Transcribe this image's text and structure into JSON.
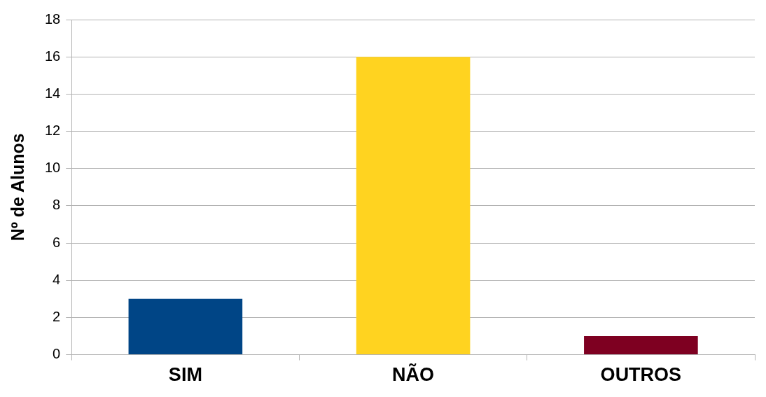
{
  "chart_data": {
    "type": "bar",
    "ylabel": "Nº de Alunos",
    "categories": [
      "SIM",
      "NÃO",
      "OUTROS"
    ],
    "values": [
      3,
      16,
      1
    ],
    "colors": [
      "#004586",
      "#ffd320",
      "#7e0021"
    ],
    "ylim": [
      0,
      18
    ],
    "yticks": [
      0,
      2,
      4,
      6,
      8,
      10,
      12,
      14,
      16,
      18
    ],
    "grid": "y",
    "legend": false
  }
}
